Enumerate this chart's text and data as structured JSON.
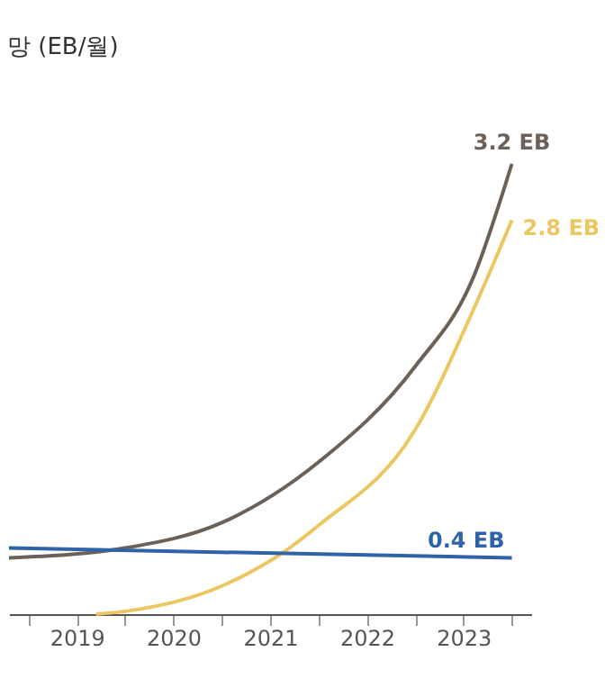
{
  "chart_data": {
    "type": "line",
    "title": "망 (EB/월)",
    "xlim": [
      2018.3,
      2023.7
    ],
    "xticks": [
      {
        "value": 2018.5,
        "label": null
      },
      2019,
      {
        "value": 2019.5,
        "label": null
      },
      2020,
      {
        "value": 2020.5,
        "label": null
      },
      2021,
      {
        "value": 2021.5,
        "label": null
      },
      2022,
      {
        "value": 2022.5,
        "label": null
      },
      2023,
      {
        "value": 2023.5,
        "label": null
      }
    ],
    "tick_labels": "x",
    "grid": false,
    "line_style": "solid",
    "series": [
      {
        "color": "#6b6157",
        "x": [
          2018.3,
          2019.5,
          2020.5,
          2021.5,
          2022.5,
          2023.1,
          2023.5
        ],
        "values": [
          0.4,
          0.47,
          0.65,
          1.08,
          1.76,
          2.39,
          3.2
        ],
        "value_labels": [
          null,
          null,
          null,
          null,
          null,
          null,
          "3.2 EB"
        ]
      },
      {
        "color": "#ecc660",
        "x": [
          2019.2,
          2019.5,
          2020.5,
          2021.2,
          2021.5,
          2022.5,
          2023.1,
          2023.5
        ],
        "values": [
          0,
          0.02,
          0.2,
          0.47,
          0.63,
          1.31,
          2.16,
          2.8
        ],
        "value_labels": [
          null,
          null,
          null,
          null,
          null,
          null,
          null,
          "2.8 EB"
        ]
      },
      {
        "color": "#2f63a8",
        "x": [
          2018.3,
          2023.5
        ],
        "values": [
          0.47,
          0.4
        ],
        "value_labels": [
          null,
          "0.4 EB"
        ]
      }
    ]
  }
}
